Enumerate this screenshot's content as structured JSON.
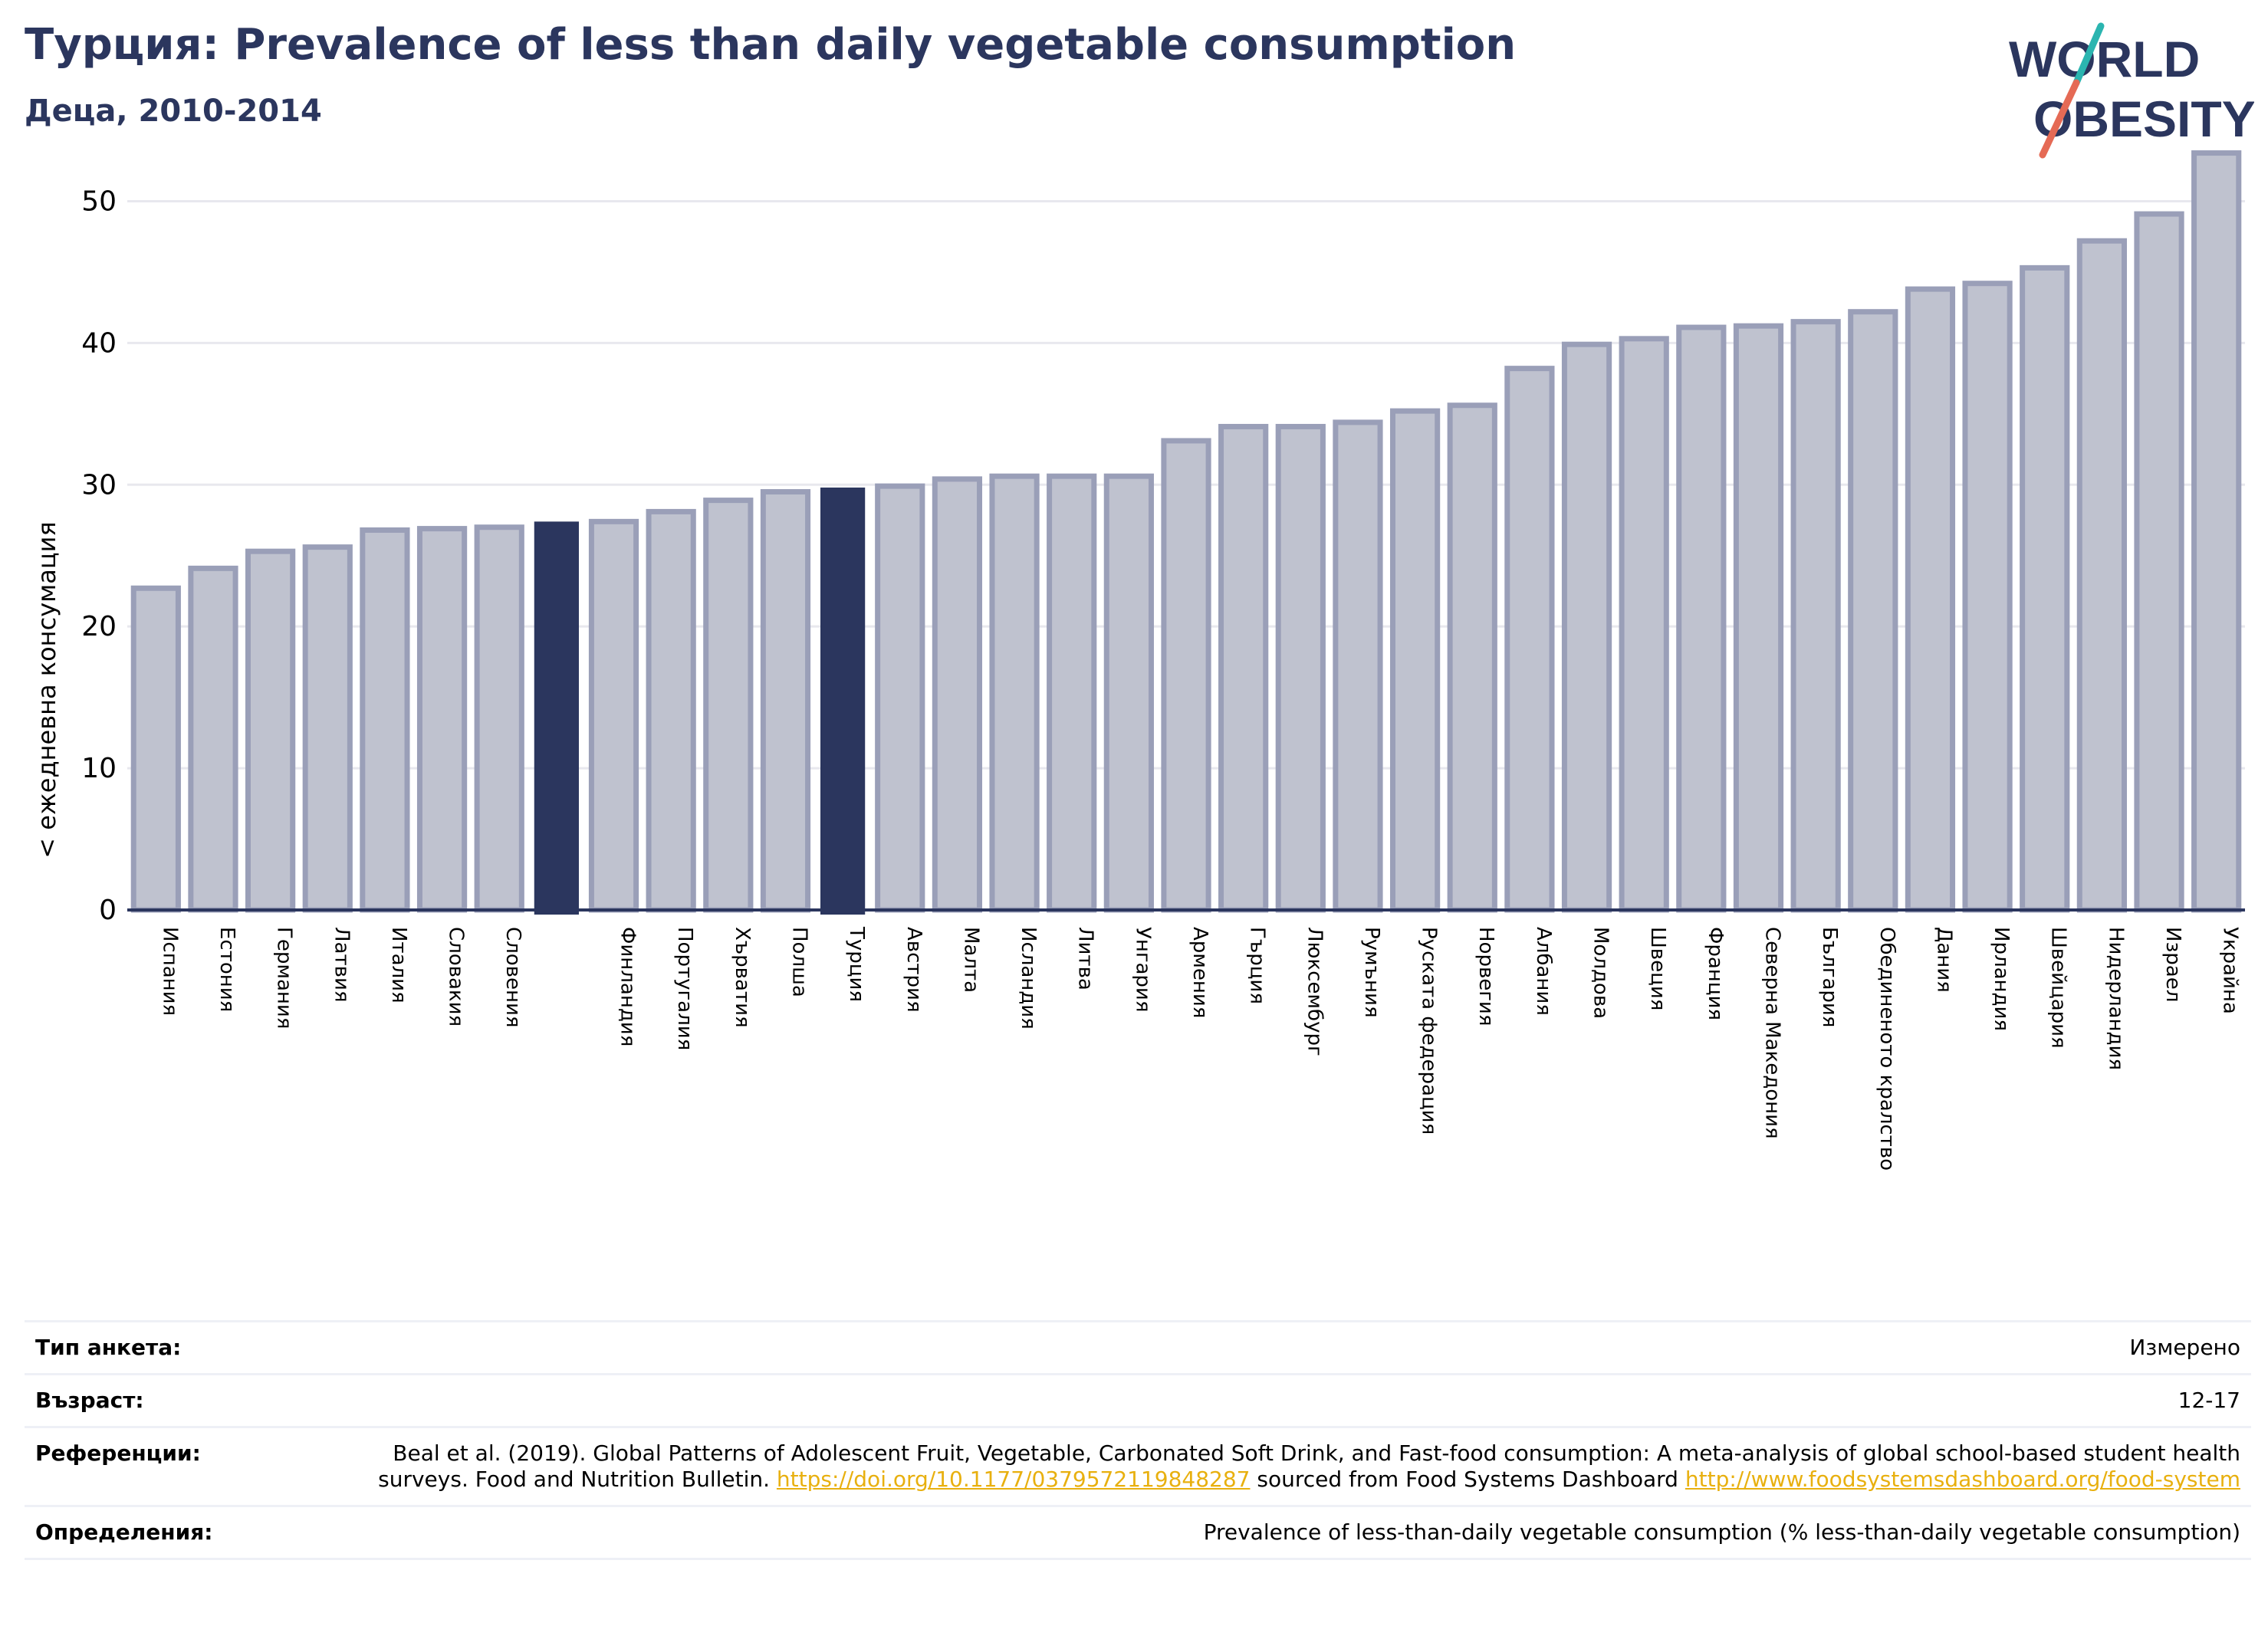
{
  "header": {
    "title": "Турция: Prevalence of less than daily vegetable consumption",
    "subtitle": "Деца, 2010-2014"
  },
  "logo": {
    "line1": "WORLD",
    "line2": "OBESITY",
    "colors": {
      "text": "#2b365e",
      "slash_top": "#2bb5b0",
      "slash_bottom": "#e56a55"
    }
  },
  "colors": {
    "bar": "#bfc2cf",
    "bar_edge": "#9a9fb8",
    "highlight": "#2b365e",
    "axis": "#2b365e",
    "grid": "#e8e8ee"
  },
  "chart_data": {
    "type": "bar",
    "ylabel": "< ежедневна консумация",
    "ylim": [
      0,
      55
    ],
    "yticks": [
      0,
      10,
      20,
      30,
      40,
      50
    ],
    "grid": true,
    "categories": [
      "Испания",
      "Естония",
      "Германия",
      "Латвия",
      "Италия",
      "Словакия",
      "Словения",
      "",
      "Финландия",
      "Португалия",
      "Хърватия",
      "Полша",
      "Турция",
      "Австрия",
      "Малта",
      "Исландия",
      "Литва",
      "Унгария",
      "Армения",
      "Гърция",
      "Люксембург",
      "Румъния",
      "Руската федерация",
      "Норвегия",
      "Албания",
      "Молдова",
      "Швеция",
      "Франция",
      "Северна Македония",
      "България",
      "Обединеното кралство",
      "Дания",
      "Ирландия",
      "Швейцария",
      "Нидерландия",
      "Израел",
      "Украйна"
    ],
    "values": [
      22.7,
      24.1,
      25.3,
      25.6,
      26.8,
      26.9,
      27.0,
      27.4,
      27.4,
      28.1,
      28.9,
      29.5,
      29.8,
      29.9,
      30.4,
      30.6,
      30.6,
      30.6,
      33.1,
      34.1,
      34.1,
      34.4,
      35.2,
      35.6,
      38.2,
      39.9,
      40.3,
      41.1,
      41.2,
      41.5,
      42.2,
      43.8,
      44.2,
      45.3,
      47.2,
      49.1,
      53.4
    ],
    "highlight": [
      7,
      12
    ]
  },
  "meta": {
    "survey_label": "Тип анкета:",
    "survey_value": "Измерено",
    "age_label": "Възраст:",
    "age_value": "12-17",
    "ref_label": "Референции:",
    "ref_text_1": "Beal et al. (2019). Global Patterns of Adolescent Fruit, Vegetable, Carbonated Soft Drink, and Fast-food consumption: A meta-analysis of global school-based student health surveys. Food and Nutrition Bulletin.",
    "ref_link_1": "https://doi.org/10.1177/0379572119848287",
    "ref_text_2": "sourced from Food Systems Dashboard",
    "ref_link_2": "http://www.foodsystemsdashboard.org/food-system",
    "def_label": "Определения:",
    "def_value": "Prevalence of less-than-daily vegetable consumption (% less-than-daily vegetable consumption)"
  }
}
